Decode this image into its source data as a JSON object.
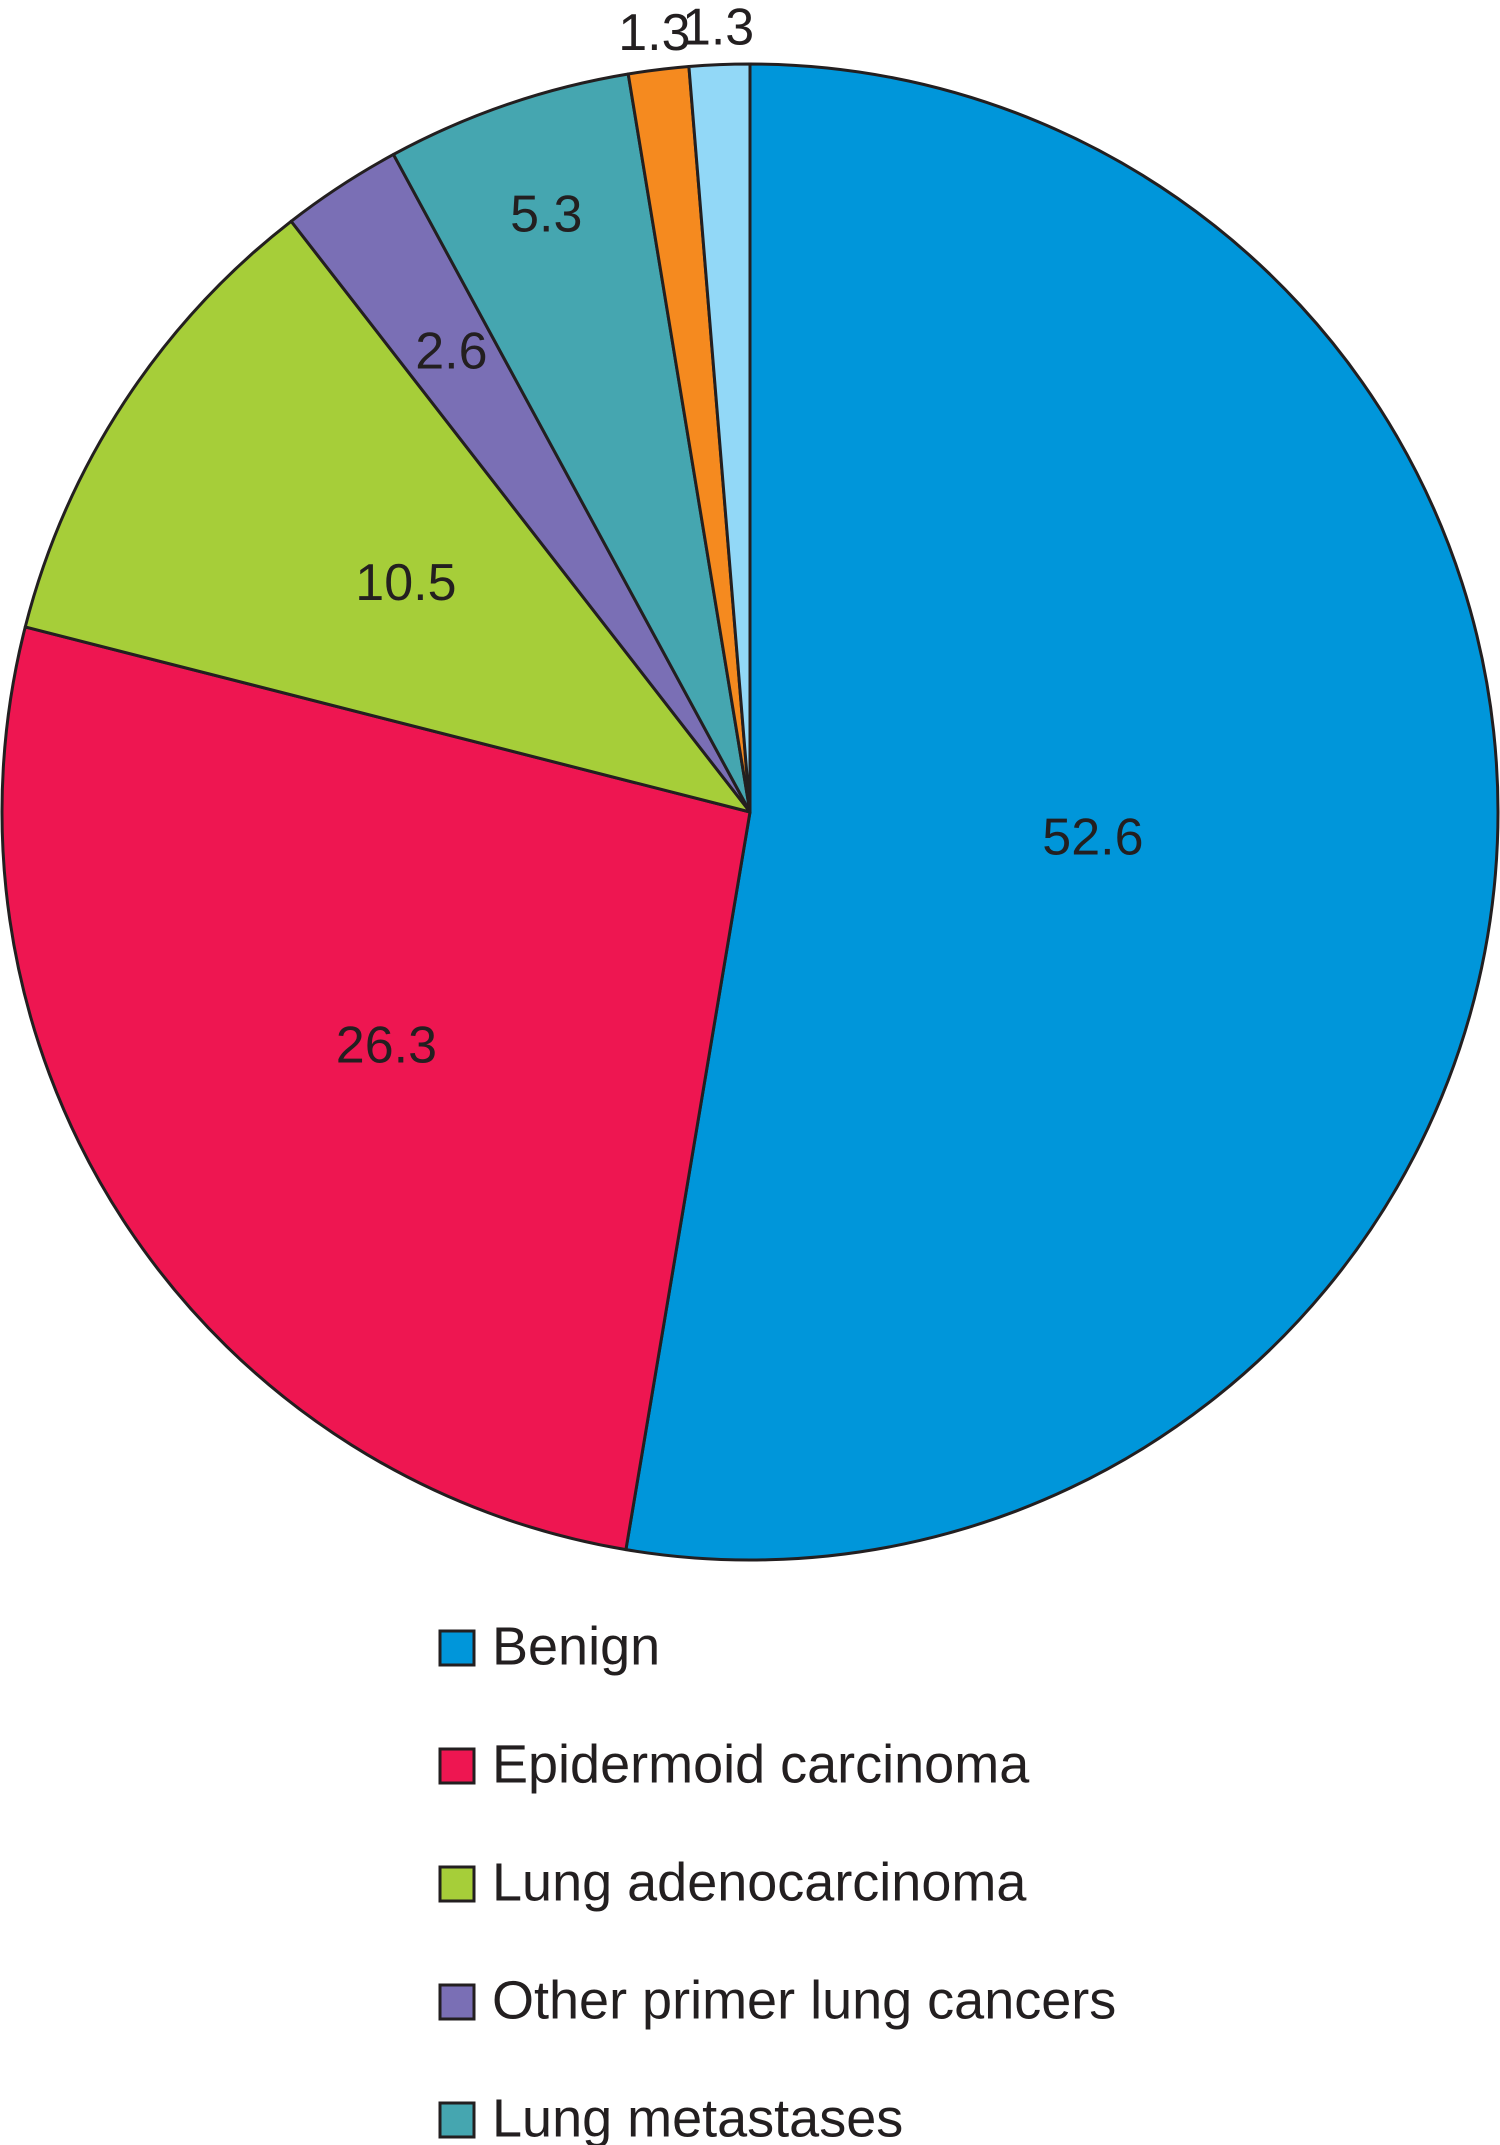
{
  "chart_data": {
    "type": "pie",
    "title": "",
    "categories": [
      "Benign",
      "Epidermoid carcinoma",
      "Lung adenocarcinoma",
      "Other primer lung cancers",
      "Lung metastases",
      "",
      ""
    ],
    "values": [
      52.6,
      26.3,
      10.5,
      2.6,
      5.3,
      1.3,
      1.3
    ],
    "value_labels": [
      "52.6",
      "26.3",
      "10.5",
      "2.6",
      "5.3",
      "1.3",
      "1.3"
    ],
    "colors": [
      "#0096da",
      "#ee1651",
      "#a6ce39",
      "#7a6fb5",
      "#45a6b0",
      "#f58a1f",
      "#92d8f7"
    ],
    "start": "12 o'clock",
    "direction": "clockwise",
    "legend": {
      "placement": "bottom",
      "entries": [
        "Benign",
        "Epidermoid carcinoma",
        "Lung adenocarcinoma",
        "Other primer lung cancers",
        "Lung metastases"
      ]
    }
  }
}
